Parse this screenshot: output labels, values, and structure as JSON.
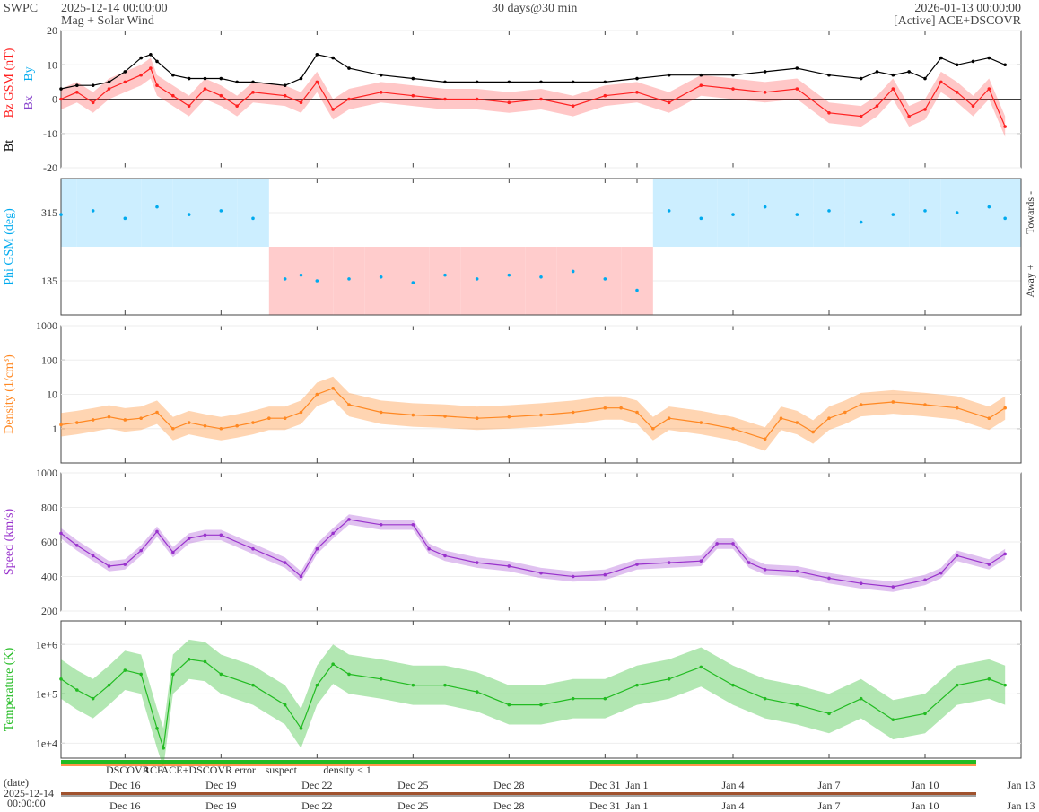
{
  "header": {
    "org": "SWPC",
    "start": "2025-12-14 00:00:00",
    "subtitle": "Mag + Solar Wind",
    "span": "30 days@30 min",
    "end": "2026-01-13 00:00:00",
    "source": "[Active] ACE+DSCOVR"
  },
  "colors": {
    "bt": "#000000",
    "bz": "#ff2020",
    "bx": "#8844cc",
    "by": "#00aaee",
    "phi_towards": "#cceeff",
    "phi_away": "#ffcccc",
    "density": "#ff8822",
    "speed": "#9933cc",
    "temperature": "#22bb22"
  },
  "footer": {
    "date_label": "(date)",
    "start_date": "2025-12-14",
    "start_time": "00:00:00",
    "legend": [
      {
        "label": "DSCOVR",
        "color": "#0000cc"
      },
      {
        "label": "ACE",
        "color": "#22aa22"
      },
      {
        "label": "ACE+DSCOVR",
        "color": "#dd22dd"
      },
      {
        "label": "error",
        "color": "#ff0000"
      },
      {
        "label": "suspect",
        "color": "#ddbb00"
      },
      {
        "label": "density < 1",
        "color": "#ff6600"
      }
    ]
  },
  "chart_data": [
    {
      "type": "line",
      "name": "mag",
      "ylabel_parts": [
        "Bt",
        "Bz GSM (nT)",
        "Bx",
        "By"
      ],
      "ylim": [
        -20,
        20
      ],
      "yticks": [
        20,
        10,
        0,
        -10,
        -20
      ],
      "series": [
        {
          "name": "Bt",
          "x": [
            0,
            0.5,
            1,
            1.5,
            2,
            2.5,
            2.8,
            3,
            3.5,
            4,
            4.5,
            5,
            5.5,
            6,
            7,
            7.5,
            8,
            8.5,
            9,
            10,
            11,
            12,
            13,
            14,
            15,
            16,
            17,
            18,
            19,
            20,
            21,
            22,
            23,
            24,
            25,
            25.5,
            26,
            26.5,
            27,
            27.5,
            28,
            28.5,
            29,
            29.5
          ],
          "y": [
            3,
            4,
            4,
            5,
            8,
            12,
            13,
            11,
            7,
            6,
            6,
            6,
            5,
            5,
            4,
            6,
            13,
            12,
            9,
            7,
            6,
            5,
            5,
            5,
            5,
            5,
            5,
            6,
            7,
            7,
            7,
            8,
            9,
            7,
            6,
            8,
            7,
            8,
            6,
            12,
            10,
            11,
            12,
            10
          ]
        },
        {
          "name": "Bz",
          "x": [
            0,
            0.5,
            1,
            1.5,
            2,
            2.5,
            2.8,
            3,
            3.5,
            4,
            4.5,
            5,
            5.5,
            6,
            7,
            7.5,
            8,
            8.5,
            9,
            10,
            11,
            12,
            13,
            14,
            15,
            16,
            17,
            18,
            19,
            20,
            21,
            22,
            23,
            24,
            25,
            25.5,
            26,
            26.5,
            27,
            27.5,
            28,
            28.5,
            29,
            29.5
          ],
          "y": [
            0,
            2,
            -1,
            3,
            5,
            7,
            9,
            4,
            1,
            -2,
            3,
            1,
            -2,
            2,
            1,
            -1,
            5,
            -3,
            0,
            2,
            1,
            0,
            0,
            -1,
            0,
            -2,
            1,
            2,
            -1,
            4,
            3,
            2,
            3,
            -4,
            -5,
            -2,
            3,
            -5,
            -3,
            5,
            2,
            -2,
            3,
            -8
          ]
        }
      ]
    },
    {
      "type": "scatter",
      "name": "phi",
      "ylabel": "Phi GSM (deg)",
      "right_labels": [
        "Towards -",
        "Away +"
      ],
      "yticks": [
        315,
        135
      ],
      "x": [
        0,
        1,
        2,
        3,
        4,
        5,
        6,
        7,
        7.5,
        8,
        9,
        10,
        11,
        12,
        13,
        14,
        15,
        16,
        17,
        18,
        19,
        20,
        21,
        22,
        23,
        24,
        25,
        26,
        27,
        28,
        29,
        29.5
      ],
      "y": [
        310,
        320,
        300,
        330,
        310,
        320,
        300,
        140,
        150,
        135,
        140,
        145,
        130,
        150,
        140,
        150,
        145,
        160,
        140,
        110,
        320,
        300,
        310,
        330,
        310,
        320,
        290,
        310,
        320,
        315,
        330,
        300
      ],
      "sector": [
        "T",
        "T",
        "T",
        "T",
        "T",
        "T",
        "T",
        "A",
        "A",
        "A",
        "A",
        "A",
        "A",
        "A",
        "A",
        "A",
        "A",
        "A",
        "A",
        "A",
        "T",
        "T",
        "T",
        "T",
        "T",
        "T",
        "T",
        "T",
        "T",
        "T",
        "T",
        "T"
      ]
    },
    {
      "type": "area",
      "name": "density",
      "ylabel": "Density (1/cm³)",
      "scale": "log",
      "ylim": [
        0.1,
        1000
      ],
      "yticks": [
        1000,
        100,
        10,
        1
      ],
      "x": [
        0,
        0.5,
        1,
        1.5,
        2,
        2.5,
        3,
        3.5,
        4,
        4.5,
        5,
        5.5,
        6,
        6.5,
        7,
        7.5,
        8,
        8.5,
        9,
        10,
        11,
        12,
        13,
        14,
        15,
        16,
        17,
        17.5,
        18,
        18.5,
        19,
        20,
        21,
        22,
        22.5,
        23,
        23.5,
        24,
        24.5,
        25,
        26,
        27,
        28,
        29,
        29.5
      ],
      "y": [
        1.3,
        1.5,
        1.8,
        2.2,
        1.8,
        2,
        3,
        1,
        1.5,
        1.2,
        1,
        1.2,
        1.5,
        2,
        2,
        3,
        10,
        15,
        5,
        3,
        2.5,
        2.3,
        2,
        2.2,
        2.5,
        3,
        4,
        4,
        3,
        1,
        2,
        1.5,
        1,
        0.5,
        2,
        1.5,
        0.8,
        2,
        3,
        5,
        6,
        5,
        4,
        2,
        4
      ]
    },
    {
      "type": "line",
      "name": "speed",
      "ylabel": "Speed (km/s)",
      "ylim": [
        200,
        1000
      ],
      "yticks": [
        1000,
        800,
        600,
        400,
        200
      ],
      "x": [
        0,
        0.5,
        1,
        1.5,
        2,
        2.5,
        3,
        3.5,
        4,
        4.5,
        5,
        6,
        7,
        7.5,
        8,
        8.5,
        9,
        10,
        11,
        11.5,
        12,
        13,
        14,
        15,
        16,
        17,
        18,
        19,
        20,
        20.5,
        21,
        21.5,
        22,
        23,
        24,
        25,
        26,
        27,
        27.5,
        28,
        29,
        29.5
      ],
      "y": [
        650,
        580,
        520,
        460,
        470,
        550,
        660,
        540,
        620,
        640,
        640,
        560,
        480,
        400,
        560,
        650,
        730,
        700,
        700,
        560,
        520,
        480,
        460,
        420,
        400,
        410,
        470,
        480,
        490,
        590,
        590,
        480,
        440,
        430,
        390,
        360,
        340,
        380,
        420,
        520,
        470,
        530
      ]
    },
    {
      "type": "line",
      "name": "temperature",
      "ylabel": "Temperature (K)",
      "scale": "log",
      "ylim": [
        5000,
        3000000
      ],
      "yticks": [
        "1e+6",
        "1e+5",
        "1e+4"
      ],
      "x": [
        0,
        0.5,
        1,
        1.5,
        2,
        2.5,
        3,
        3.2,
        3.5,
        4,
        4.5,
        5,
        6,
        7,
        7.5,
        8,
        8.5,
        9,
        10,
        11,
        12,
        13,
        14,
        15,
        16,
        17,
        18,
        19,
        20,
        21,
        22,
        23,
        24,
        25,
        26,
        27,
        28,
        29,
        29.5
      ],
      "y": [
        200000,
        120000,
        80000,
        150000,
        300000,
        250000,
        20000,
        8000,
        250000,
        500000,
        450000,
        250000,
        150000,
        60000,
        20000,
        150000,
        400000,
        250000,
        200000,
        150000,
        150000,
        110000,
        60000,
        60000,
        80000,
        80000,
        150000,
        200000,
        350000,
        150000,
        80000,
        60000,
        40000,
        80000,
        30000,
        40000,
        150000,
        200000,
        150000
      ]
    }
  ],
  "x_axis": {
    "range_days": [
      0,
      30
    ],
    "ticks": [
      {
        "day": 2,
        "label": "Dec 16"
      },
      {
        "day": 5,
        "label": "Dec 19"
      },
      {
        "day": 8,
        "label": "Dec 22"
      },
      {
        "day": 11,
        "label": "Dec 25"
      },
      {
        "day": 14,
        "label": "Dec 28"
      },
      {
        "day": 17,
        "label": "Dec 31"
      },
      {
        "day": 18,
        "label": "Jan 1"
      },
      {
        "day": 21,
        "label": "Jan 4"
      },
      {
        "day": 24,
        "label": "Jan 7"
      },
      {
        "day": 27,
        "label": "Jan 10"
      },
      {
        "day": 30,
        "label": "Jan 13"
      }
    ]
  }
}
